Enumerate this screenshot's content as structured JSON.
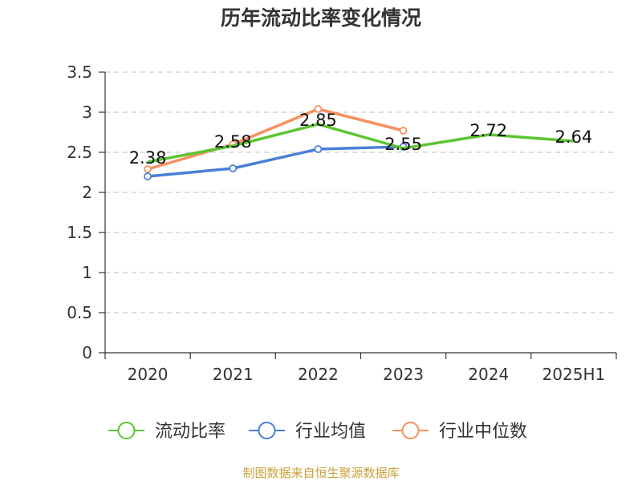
{
  "chart_data": {
    "type": "line",
    "title": "历年流动比率变化情况",
    "categories": [
      "2020",
      "2021",
      "2022",
      "2023",
      "2024",
      "2025H1"
    ],
    "ylim": [
      0,
      3.5
    ],
    "y_ticks": [
      "0",
      "0.5",
      "1",
      "1.5",
      "2",
      "2.5",
      "3",
      "3.5"
    ],
    "grid": "horizontal-dashed",
    "legend_position": "bottom",
    "series": [
      {
        "name": "流动比率",
        "color": "#5cc530",
        "values": [
          2.38,
          2.58,
          2.85,
          2.55,
          2.72,
          2.64
        ],
        "labels": [
          "2.38",
          "2.58",
          "2.85",
          "2.55",
          "2.72",
          "2.64"
        ]
      },
      {
        "name": "行业均值",
        "color": "#4a7fd8",
        "values": [
          2.2,
          2.3,
          2.54,
          2.57,
          null,
          null
        ]
      },
      {
        "name": "行业中位数",
        "color": "#f7905f",
        "values": [
          2.29,
          2.6,
          3.04,
          2.77,
          null,
          null
        ]
      }
    ]
  },
  "source": "制图数据来自恒生聚源数据库"
}
